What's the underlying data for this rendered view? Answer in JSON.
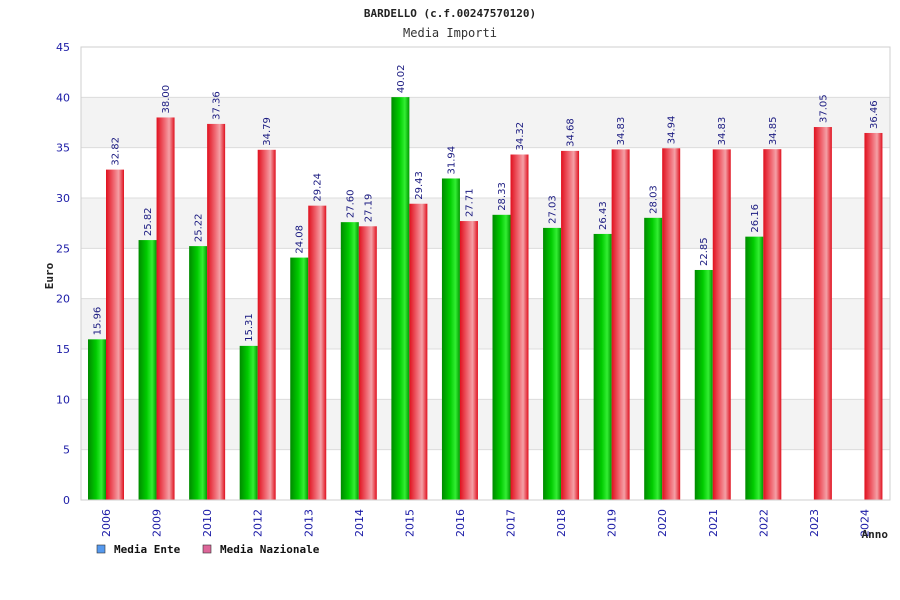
{
  "chart_data": {
    "type": "bar",
    "title": "BARDELLO (c.f.00247570120)",
    "subtitle": "Media Importi",
    "xlabel": "Anno",
    "ylabel": "Euro",
    "ylim": [
      0,
      45
    ],
    "yticks": [
      "0",
      "5",
      "10",
      "15",
      "20",
      "25",
      "30",
      "35",
      "40",
      "45"
    ],
    "categories": [
      "2006",
      "2009",
      "2010",
      "2012",
      "2013",
      "2014",
      "2015",
      "2016",
      "2017",
      "2018",
      "2019",
      "2020",
      "2021",
      "2022",
      "2023",
      "2024"
    ],
    "series": [
      {
        "name": "Media Ente",
        "color": "#00aa00",
        "legend_color": "#5599ee",
        "values": [
          15.96,
          25.82,
          25.22,
          15.31,
          24.08,
          27.6,
          40.02,
          31.94,
          28.33,
          27.03,
          26.43,
          28.03,
          22.85,
          26.16,
          null,
          null
        ],
        "labels": [
          "15.96",
          "25.82",
          "25.22",
          "15.31",
          "24.08",
          "27.60",
          "40.02",
          "31.94",
          "28.33",
          "27.03",
          "26.43",
          "28.03",
          "22.85",
          "26.16",
          "",
          ""
        ]
      },
      {
        "name": "Media Nazionale",
        "color": "#ee2233",
        "legend_color": "#dd6699",
        "values": [
          32.82,
          38.0,
          37.36,
          34.79,
          29.24,
          27.19,
          29.43,
          27.71,
          34.32,
          34.68,
          34.83,
          34.94,
          34.83,
          34.85,
          37.05,
          36.46
        ],
        "labels": [
          "32.82",
          "38.00",
          "37.36",
          "34.79",
          "29.24",
          "27.19",
          "29.43",
          "27.71",
          "34.32",
          "34.68",
          "34.83",
          "34.94",
          "34.83",
          "34.85",
          "37.05",
          "36.46"
        ]
      }
    ],
    "grid": true,
    "legend_position": "bottom-left"
  }
}
